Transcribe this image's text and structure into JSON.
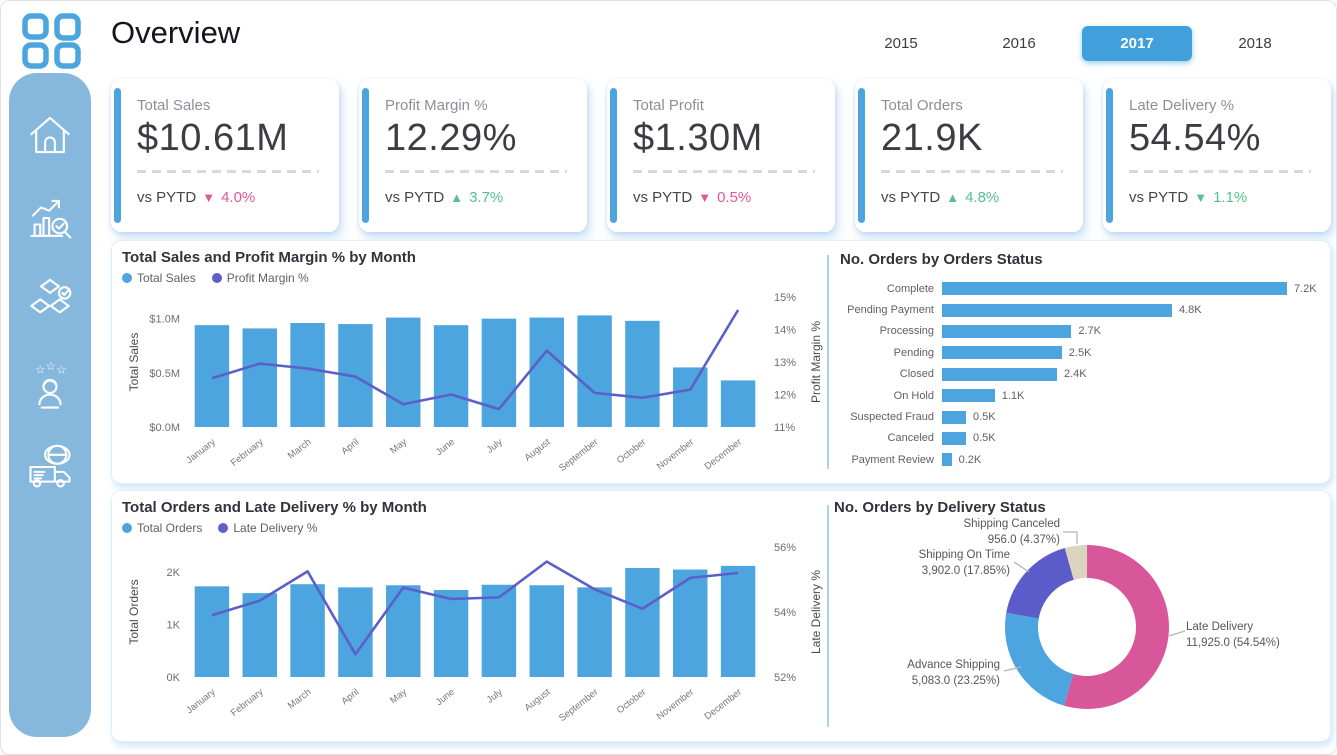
{
  "header": {
    "title": "Overview",
    "year_tabs": [
      {
        "label": "2015",
        "active": false
      },
      {
        "label": "2016",
        "active": false
      },
      {
        "label": "2017",
        "active": true
      },
      {
        "label": "2018",
        "active": false
      }
    ]
  },
  "sidebar": {
    "items": [
      "home",
      "sales-analysis",
      "products",
      "customers",
      "delivery"
    ]
  },
  "colors": {
    "accent": "#41A0DB",
    "bar_blue": "#4CA5DE",
    "line_purple": "#5B5FC7",
    "sidebar_blue": "#86B8DD",
    "pink": "#E0579B",
    "green": "#54C28D",
    "donut_pink": "#D8579B",
    "donut_purple": "#5B5BC9",
    "donut_beige": "#DBD4BF"
  },
  "kpis": {
    "compare_label": "vs PYTD",
    "items": [
      {
        "title": "Total Sales",
        "value": "$10.61M",
        "arrow": "▼",
        "delta": "4.0%",
        "delta_color": "#E0579B"
      },
      {
        "title": "Profit Margin %",
        "value": "12.29%",
        "arrow": "▲",
        "delta": "3.7%",
        "delta_color": "#54C28D"
      },
      {
        "title": "Total Profit",
        "value": "$1.30M",
        "arrow": "▼",
        "delta": "0.5%",
        "delta_color": "#E0579B"
      },
      {
        "title": "Total Orders",
        "value": "21.9K",
        "arrow": "▲",
        "delta": "4.8%",
        "delta_color": "#54C28D"
      },
      {
        "title": "Late Delivery %",
        "value": "54.54%",
        "arrow": "▼",
        "delta": "1.1%",
        "delta_color": "#54C28D"
      }
    ]
  },
  "chart_data": [
    {
      "id": "sales_margin",
      "type": "combo-bar-line",
      "title": "Total Sales and Profit Margin % by Month",
      "categories": [
        "January",
        "February",
        "March",
        "April",
        "May",
        "June",
        "July",
        "August",
        "September",
        "October",
        "November",
        "December"
      ],
      "series": [
        {
          "name": "Total Sales",
          "type": "bar",
          "unit": "$M",
          "color": "#4CA5DE",
          "values": [
            0.94,
            0.91,
            0.96,
            0.95,
            1.01,
            0.94,
            1.0,
            1.01,
            1.03,
            0.98,
            0.55,
            0.43
          ]
        },
        {
          "name": "Profit Margin %",
          "type": "line",
          "unit": "%",
          "color": "#5B5FC7",
          "values": [
            12.5,
            12.95,
            12.8,
            12.55,
            11.7,
            12.0,
            11.55,
            13.35,
            12.05,
            11.9,
            12.15,
            14.6
          ]
        }
      ],
      "left_axis": {
        "label": "Total Sales",
        "ticks": [
          "$1.0M",
          "$0.5M",
          "$0.0M"
        ],
        "tick_values": [
          1.0,
          0.5,
          0.0
        ],
        "max": 1.2
      },
      "right_axis": {
        "label": "Profit Margin %",
        "ticks": [
          "15%",
          "14%",
          "13%",
          "12%",
          "11%"
        ],
        "tick_values": [
          15,
          14,
          13,
          12,
          11
        ],
        "min": 11,
        "max": 15
      },
      "grid": false,
      "legend_position": "top-left"
    },
    {
      "id": "orders_status",
      "type": "bar",
      "orientation": "horizontal",
      "title": "No. Orders by Orders Status",
      "categories": [
        "Complete",
        "Pending Payment",
        "Processing",
        "Pending",
        "Closed",
        "On Hold",
        "Suspected Fraud",
        "Canceled",
        "Payment Review"
      ],
      "values": [
        7.2,
        4.8,
        2.7,
        2.5,
        2.4,
        1.1,
        0.5,
        0.5,
        0.2
      ],
      "value_labels": [
        "7.2K",
        "4.8K",
        "2.7K",
        "2.5K",
        "2.4K",
        "1.1K",
        "0.5K",
        "0.5K",
        "0.2K"
      ],
      "xlim": [
        0,
        7.2
      ],
      "color": "#4CA5DE",
      "grid": false
    },
    {
      "id": "orders_late_delivery",
      "type": "combo-bar-line",
      "title": "Total Orders and Late Delivery % by Month",
      "categories": [
        "January",
        "February",
        "March",
        "April",
        "May",
        "June",
        "July",
        "August",
        "September",
        "October",
        "November",
        "December"
      ],
      "series": [
        {
          "name": "Total Orders",
          "type": "bar",
          "unit": "K",
          "color": "#4CA5DE",
          "values": [
            1.73,
            1.6,
            1.77,
            1.71,
            1.75,
            1.66,
            1.76,
            1.75,
            1.71,
            2.08,
            2.05,
            2.12
          ]
        },
        {
          "name": "Late Delivery %",
          "type": "line",
          "unit": "%",
          "color": "#5B5FC7",
          "values": [
            53.9,
            54.35,
            55.25,
            52.7,
            54.75,
            54.4,
            54.45,
            55.55,
            54.7,
            54.1,
            55.05,
            55.2
          ]
        }
      ],
      "left_axis": {
        "label": "Total Orders",
        "ticks": [
          "2K",
          "1K",
          "0K"
        ],
        "tick_values": [
          2,
          1,
          0
        ],
        "max": 2.48
      },
      "right_axis": {
        "label": "Late Delivery %",
        "ticks": [
          "56%",
          "54%",
          "52%"
        ],
        "tick_values": [
          56,
          54,
          52
        ],
        "min": 52,
        "max": 56
      },
      "grid": false,
      "legend_position": "top-left"
    },
    {
      "id": "delivery_status",
      "type": "pie",
      "subtype": "donut",
      "title": "No. Orders by Delivery Status",
      "slices": [
        {
          "label": "Late Delivery",
          "value": 11925.0,
          "pct": 54.54,
          "value_text": "11,925.0 (54.54%)",
          "color": "#D8579B"
        },
        {
          "label": "Advance Shipping",
          "value": 5083.0,
          "pct": 23.25,
          "value_text": "5,083.0 (23.25%)",
          "color": "#4CA5DE"
        },
        {
          "label": "Shipping On Time",
          "value": 3902.0,
          "pct": 17.85,
          "value_text": "3,902.0 (17.85%)",
          "color": "#5B5BC9"
        },
        {
          "label": "Shipping Canceled",
          "value": 956.0,
          "pct": 4.37,
          "value_text": "956.0 (4.37%)",
          "color": "#DBD4BF"
        }
      ]
    }
  ]
}
